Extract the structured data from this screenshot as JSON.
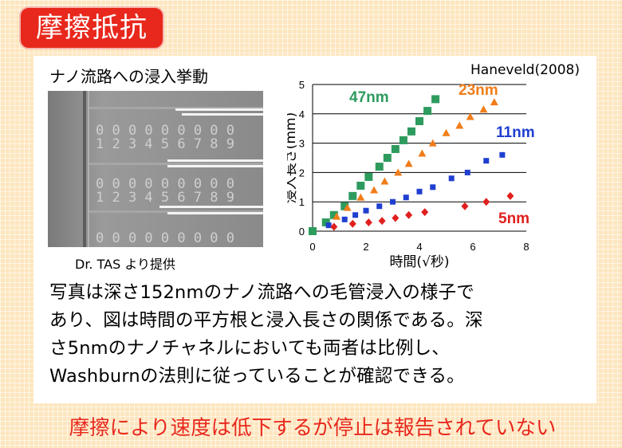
{
  "title": "摩擦抵抗",
  "photo": {
    "title": "ナノ流路への浸入挙動",
    "credit": "Dr. TAS より提供",
    "digits_row": [
      "0",
      "0",
      "0",
      "0",
      "0",
      "0",
      "0",
      "0",
      "0"
    ],
    "numbers_row": [
      "1",
      "2",
      "3",
      "4",
      "5",
      "6",
      "7",
      "8",
      "9"
    ]
  },
  "source": "Haneveld(2008)",
  "summary": [
    "写真は深さ152nmのナノ流路への毛管浸入の様子で",
    "あり、図は時間の平方根と浸入長さの関係である。深",
    "さ5nmのナノチャネルにおいても両者は比例し、",
    "Washburnの法則に従っていることが確認できる。"
  ],
  "conclusion": "摩擦により速度は低下するが停止は報告されていない",
  "colors": {
    "accent": "#e8281c",
    "s47": "#2e9b5e",
    "s23": "#f07d1a",
    "s11": "#1f3fd0",
    "s5": "#e0201e"
  },
  "chart_data": {
    "type": "scatter",
    "xlabel": "時間(√秒)",
    "ylabel": "浸入長さ(mm)",
    "xlim": [
      0,
      8
    ],
    "ylim": [
      0,
      5
    ],
    "xticks": [
      0,
      2,
      4,
      6,
      8
    ],
    "yticks": [
      0,
      1,
      2,
      3,
      4,
      5
    ],
    "grid": "horizontal",
    "series": [
      {
        "name": "47nm",
        "marker": "square",
        "color": "#2e9b5e",
        "x": [
          0,
          0.5,
          0.8,
          1.2,
          1.5,
          1.8,
          2.1,
          2.5,
          2.8,
          3.1,
          3.4,
          3.7,
          4.0,
          4.3,
          4.6
        ],
        "y": [
          0,
          0.3,
          0.55,
          0.85,
          1.2,
          1.55,
          1.85,
          2.2,
          2.5,
          2.8,
          3.1,
          3.4,
          3.75,
          4.1,
          4.5
        ]
      },
      {
        "name": "23nm",
        "marker": "triangle",
        "color": "#f07d1a",
        "x": [
          0.9,
          1.3,
          1.8,
          2.3,
          2.7,
          3.2,
          3.6,
          4.1,
          4.5,
          5.0,
          5.5,
          5.9,
          6.4,
          6.8
        ],
        "y": [
          0.5,
          0.8,
          1.15,
          1.4,
          1.7,
          2.0,
          2.3,
          2.65,
          3.0,
          3.35,
          3.6,
          3.9,
          4.15,
          4.4
        ]
      },
      {
        "name": "11nm",
        "marker": "square",
        "color": "#1f3fd0",
        "x": [
          0.6,
          1.2,
          1.6,
          2.0,
          2.5,
          3.0,
          3.5,
          4.0,
          4.5,
          5.2,
          5.8,
          6.5,
          7.1
        ],
        "y": [
          0.2,
          0.4,
          0.55,
          0.7,
          0.85,
          1.0,
          1.15,
          1.35,
          1.5,
          1.8,
          2.0,
          2.4,
          2.6
        ]
      },
      {
        "name": "5nm",
        "marker": "diamond",
        "color": "#e0201e",
        "x": [
          0.8,
          1.5,
          2.1,
          2.6,
          3.1,
          3.6,
          4.2,
          5.7,
          6.5,
          7.4
        ],
        "y": [
          0.15,
          0.25,
          0.3,
          0.35,
          0.45,
          0.55,
          0.65,
          0.85,
          1.0,
          1.2
        ]
      }
    ]
  }
}
